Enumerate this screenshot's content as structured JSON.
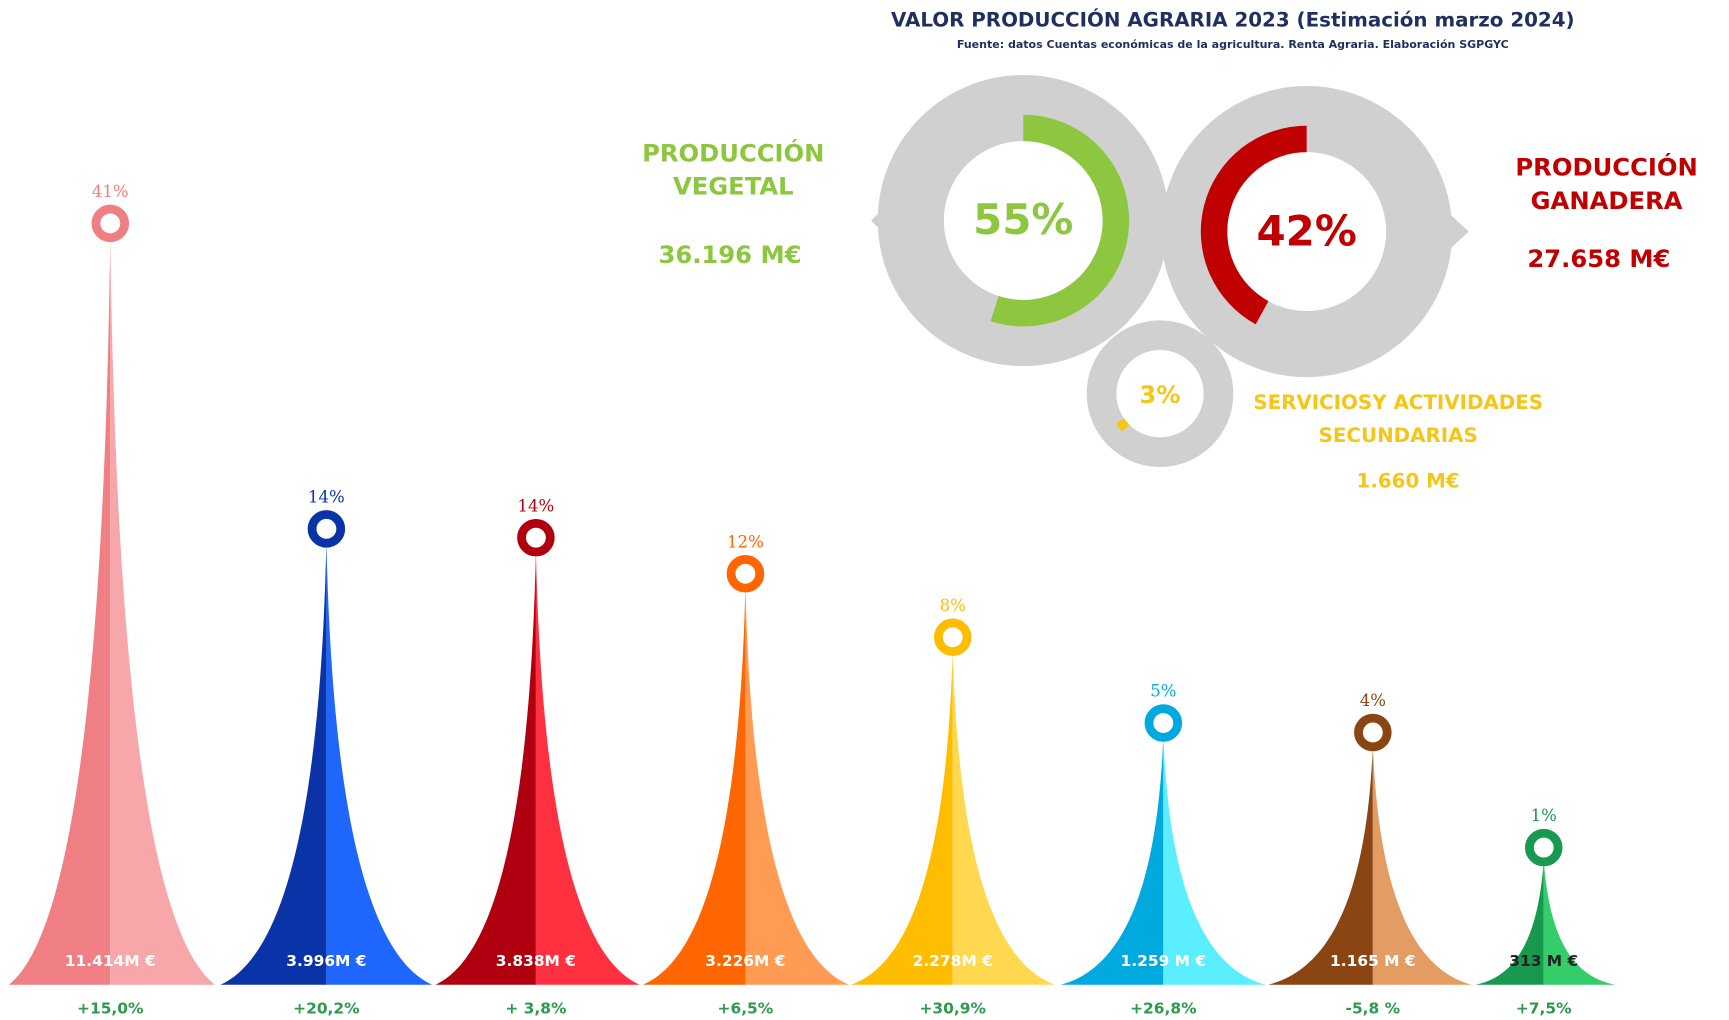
{
  "header": {
    "title": "VALOR PRODUCCIÓN AGRARIA 2023 (Estimación marzo 2024)",
    "subtitle": "Fuente: datos Cuentas económicas de la agricultura. Renta Agraria. Elaboración SGPGYC"
  },
  "groups": [
    {
      "label_lines": [
        "PRODUCCIÓN",
        "VEGETAL"
      ],
      "share": {
        "value": 55,
        "label": "55%"
      },
      "amount": {
        "value": 36196,
        "label": "36.196 M€"
      },
      "color": "#8dc63f"
    },
    {
      "label_lines": [
        "PRODUCCIÓN",
        "GANADERA"
      ],
      "share": {
        "value": 42,
        "label": "42%"
      },
      "amount": {
        "value": 27658,
        "label": "27.658 M€"
      },
      "color": "#c00000"
    },
    {
      "label_lines": [
        "SERVICIOSY ACTIVIDADES",
        "SECUNDARIAS"
      ],
      "share": {
        "value": 3,
        "label": "3%"
      },
      "amount": {
        "value": 1660,
        "label": "1.660 M€"
      },
      "color": "#f5c518"
    }
  ],
  "peaks": [
    {
      "share": {
        "value": 41,
        "label": "41%"
      },
      "amount": {
        "value": 11414,
        "label": "11.414M €"
      },
      "change": {
        "value": 15.0,
        "label": "+15,0%"
      },
      "colors": [
        "#f07f84",
        "#f7a7aa"
      ]
    },
    {
      "share": {
        "value": 14,
        "label": "14%"
      },
      "amount": {
        "value": 3996,
        "label": "3.996M €"
      },
      "change": {
        "value": 20.2,
        "label": "+20,2%"
      },
      "colors": [
        "#0a33a8",
        "#1f66ff"
      ]
    },
    {
      "share": {
        "value": 14,
        "label": "14%"
      },
      "amount": {
        "value": 3838,
        "label": "3.838M €"
      },
      "change": {
        "value": 3.8,
        "label": "+ 3,8%"
      },
      "colors": [
        "#b0000f",
        "#ff3140"
      ]
    },
    {
      "share": {
        "value": 12,
        "label": "12%"
      },
      "amount": {
        "value": 3226,
        "label": "3.226M €"
      },
      "change": {
        "value": 6.5,
        "label": "+6,5%"
      },
      "colors": [
        "#ff6500",
        "#ff9b52"
      ]
    },
    {
      "share": {
        "value": 8,
        "label": "8%"
      },
      "amount": {
        "value": 2278,
        "label": "2.278M €"
      },
      "change": {
        "value": 30.9,
        "label": "+30,9%"
      },
      "colors": [
        "#ffbd00",
        "#ffd84f"
      ]
    },
    {
      "share": {
        "value": 5,
        "label": "5%"
      },
      "amount": {
        "value": 1259,
        "label": "1.259 M €"
      },
      "change": {
        "value": 26.8,
        "label": "+26,8%"
      },
      "colors": [
        "#00aadf",
        "#5aeeff"
      ]
    },
    {
      "share": {
        "value": 4,
        "label": "4%"
      },
      "amount": {
        "value": 1165,
        "label": "1.165 M €"
      },
      "change": {
        "value": -5.8,
        "label": "-5,8 %"
      },
      "colors": [
        "#8b4512",
        "#e39c62"
      ]
    },
    {
      "share": {
        "value": 1,
        "label": "1%"
      },
      "amount": {
        "value": 313,
        "label": "313 M €"
      },
      "change": {
        "value": 7.5,
        "label": "+7,5%"
      },
      "colors": [
        "#17994f",
        "#35cc6a"
      ]
    }
  ]
}
